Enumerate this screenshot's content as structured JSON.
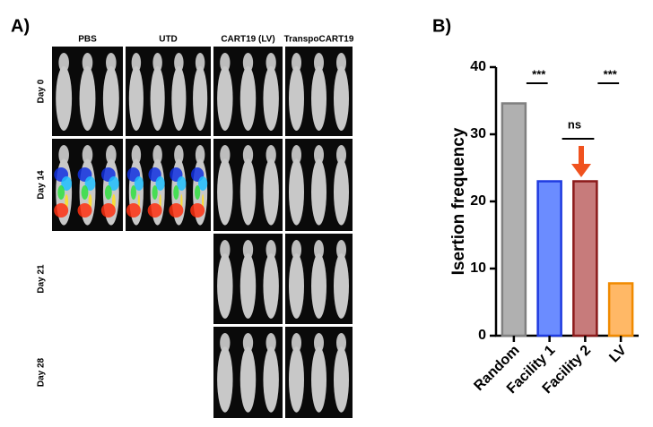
{
  "panel_a": {
    "label": "A)",
    "columns": [
      "PBS",
      "UTD",
      "CART19 (LV)",
      "TranspoCART19"
    ],
    "rows": [
      "Day 0",
      "Day 14",
      "Day 21",
      "Day 28"
    ]
  },
  "chart_data": {
    "type": "bar",
    "panel_label": "B)",
    "y_label": "Isertion frequency",
    "categories": [
      "Random",
      "Facility 1",
      "Facility 2",
      "LV"
    ],
    "values": [
      34.6,
      23.0,
      23.0,
      7.8
    ],
    "colors": [
      "#b0b0b0",
      "#6b8cff",
      "#c77b7b",
      "#ffb866"
    ],
    "edge_colors": [
      "#808080",
      "#1f3be0",
      "#8b1a1a",
      "#f08a00"
    ],
    "ylim": [
      0,
      40
    ],
    "yticks": [
      0,
      10,
      20,
      30,
      40
    ],
    "annotations": [
      "***",
      "ns",
      "***"
    ]
  }
}
